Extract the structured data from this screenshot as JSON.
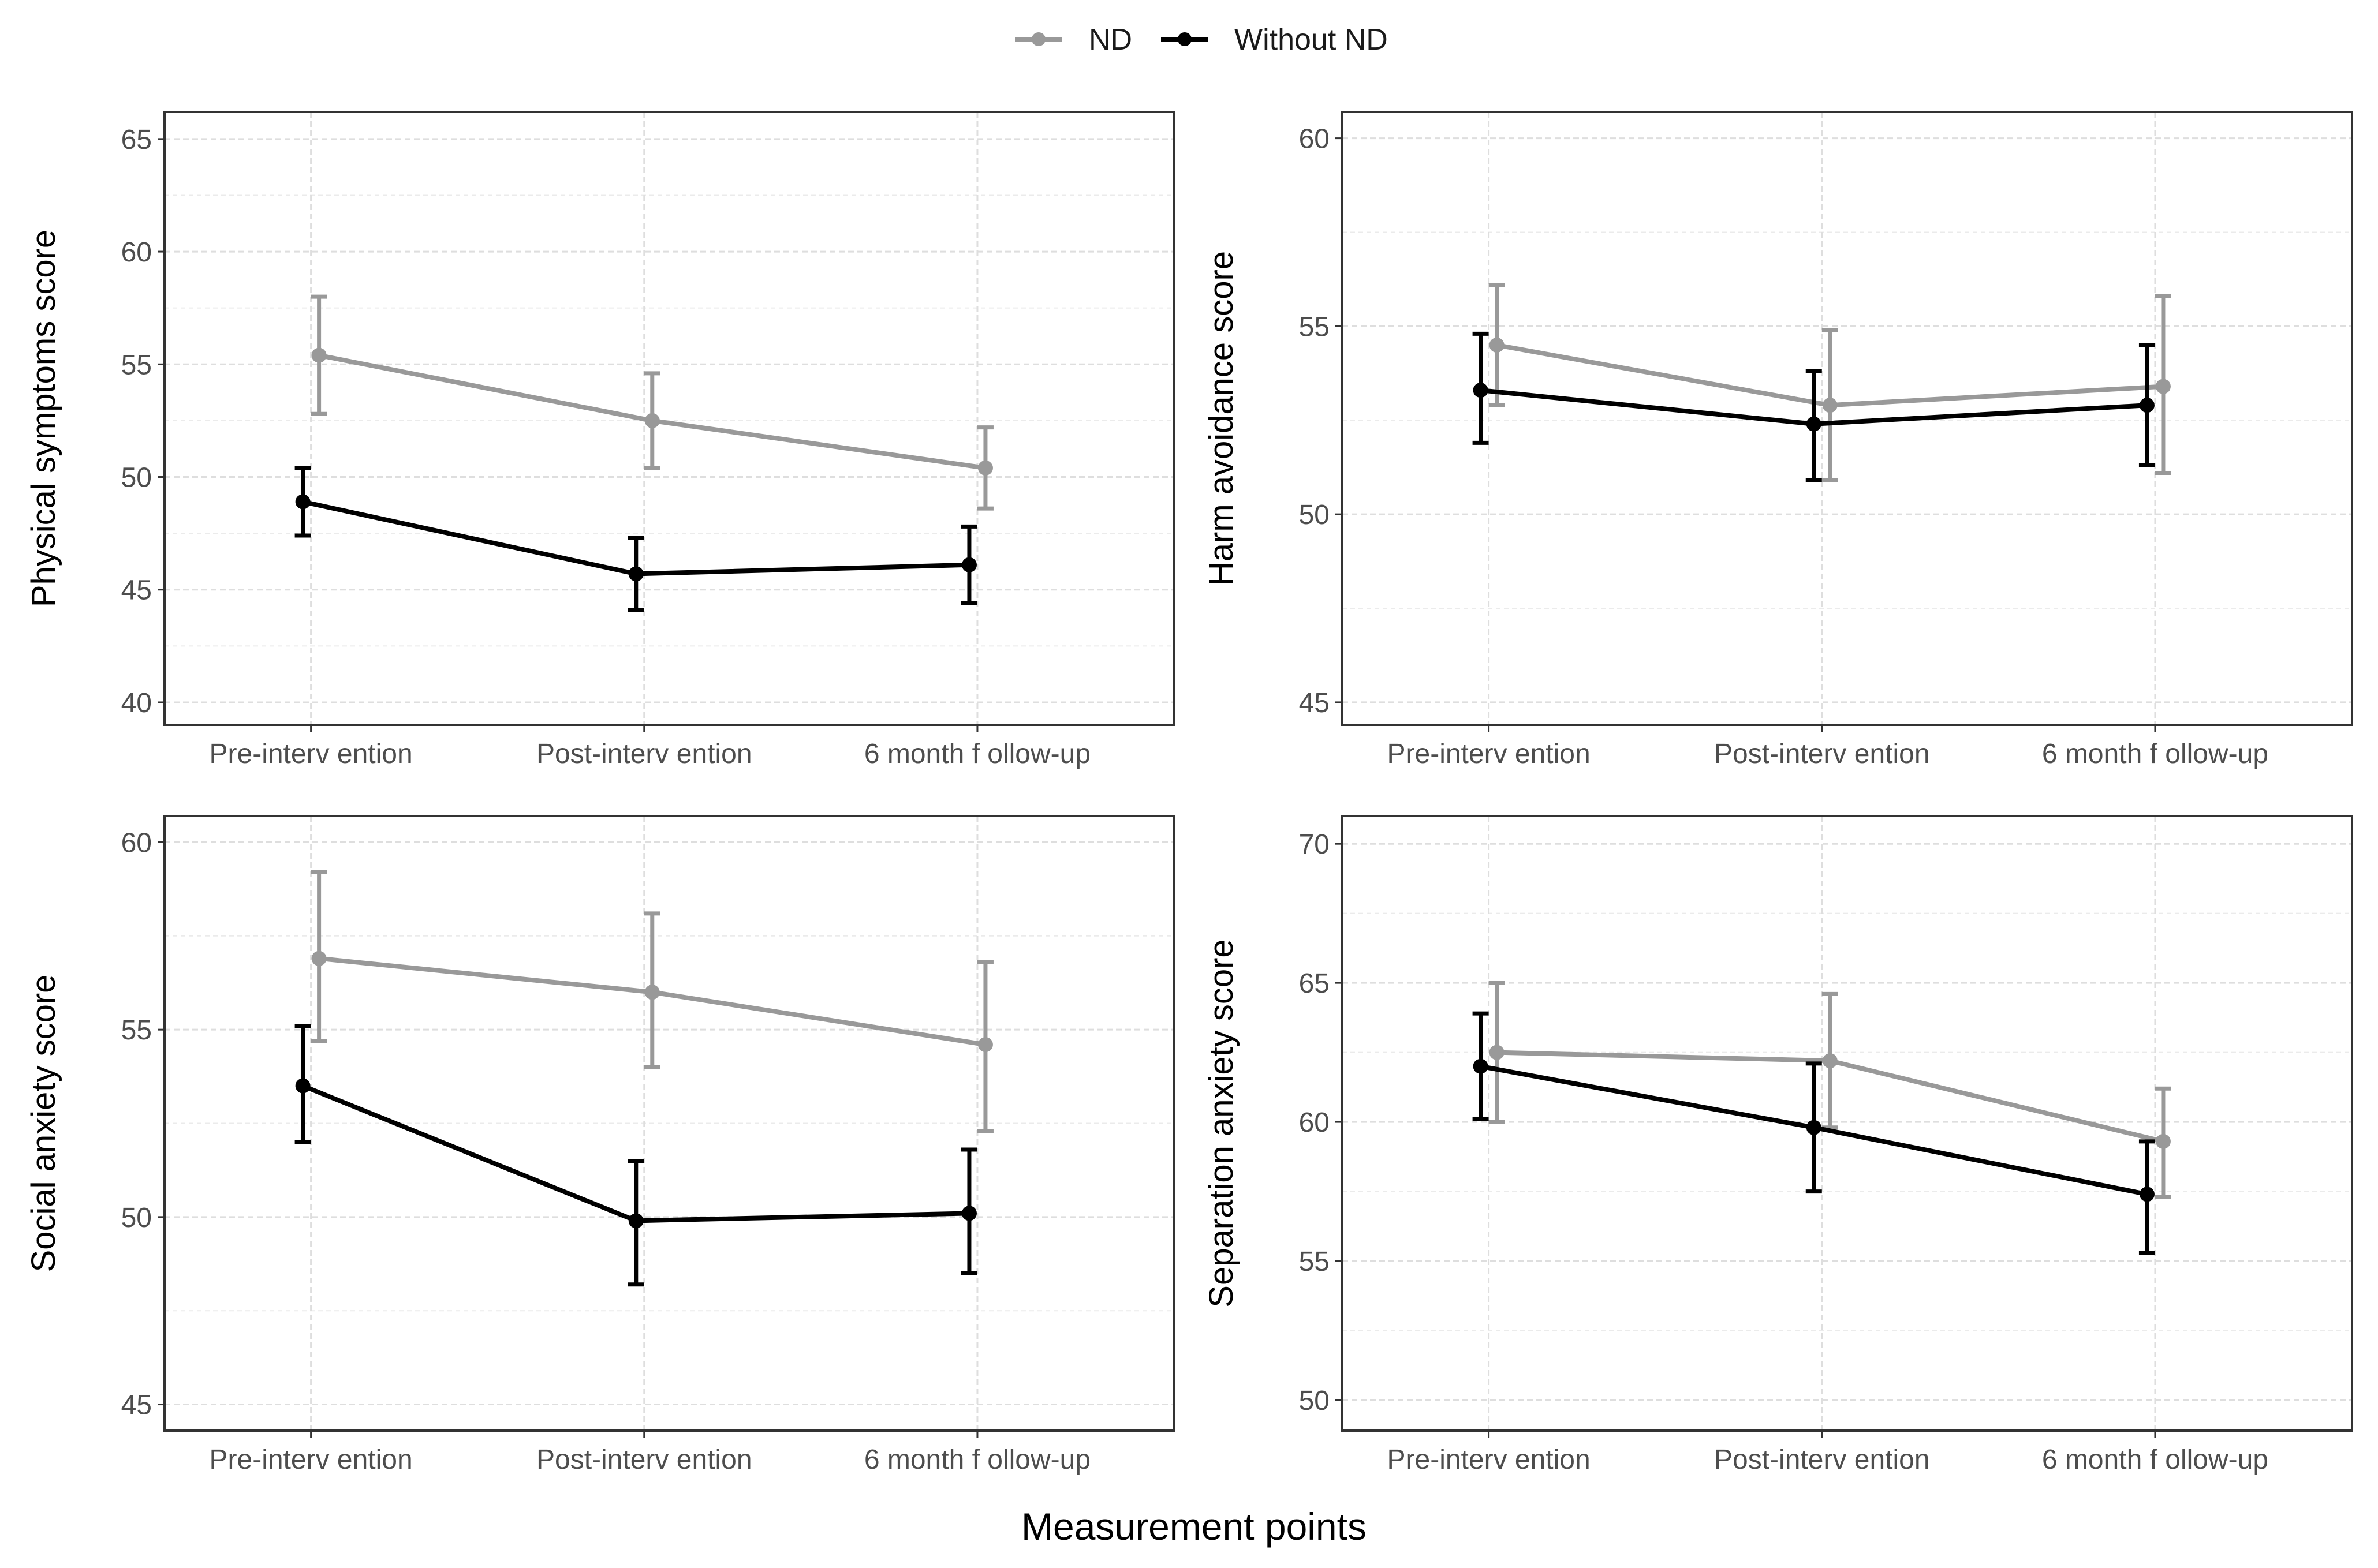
{
  "legend": {
    "items": [
      {
        "label": "ND",
        "color": "#999999"
      },
      {
        "label": "Without ND",
        "color": "#000000"
      }
    ]
  },
  "x_axis_title": "Measurement points",
  "chart_data": [
    {
      "type": "line",
      "panel": "top-left",
      "title": "",
      "xlabel": "",
      "ylabel": "Physical symptoms score",
      "categories": [
        "Pre-interv ention",
        "Post-interv ention",
        "6 month f ollow-up"
      ],
      "ylim": [
        39,
        66.2
      ],
      "yticks": [
        40,
        45,
        50,
        55,
        60,
        65
      ],
      "grid": true,
      "series": [
        {
          "name": "ND",
          "color": "#999999",
          "values": [
            55.4,
            52.5,
            50.4
          ],
          "lower": [
            52.8,
            50.4,
            48.6
          ],
          "upper": [
            58.0,
            54.6,
            52.2
          ]
        },
        {
          "name": "Without ND",
          "color": "#000000",
          "values": [
            48.9,
            45.7,
            46.1
          ],
          "lower": [
            47.4,
            44.1,
            44.4
          ],
          "upper": [
            50.4,
            47.3,
            47.8
          ]
        }
      ]
    },
    {
      "type": "line",
      "panel": "top-right",
      "title": "",
      "xlabel": "",
      "ylabel": "Harm avoidance score",
      "categories": [
        "Pre-interv ention",
        "Post-interv ention",
        "6 month f ollow-up"
      ],
      "ylim": [
        44.4,
        60.7
      ],
      "yticks": [
        45,
        50,
        55,
        60
      ],
      "grid": true,
      "series": [
        {
          "name": "ND",
          "color": "#999999",
          "values": [
            54.5,
            52.9,
            53.4
          ],
          "lower": [
            52.9,
            50.9,
            51.1
          ],
          "upper": [
            56.1,
            54.9,
            55.8
          ]
        },
        {
          "name": "Without ND",
          "color": "#000000",
          "values": [
            53.3,
            52.4,
            52.9
          ],
          "lower": [
            51.9,
            50.9,
            51.3
          ],
          "upper": [
            54.8,
            53.8,
            54.5
          ]
        }
      ]
    },
    {
      "type": "line",
      "panel": "bottom-left",
      "title": "",
      "xlabel": "",
      "ylabel": "Social anxiety score",
      "categories": [
        "Pre-interv ention",
        "Post-interv ention",
        "6 month f ollow-up"
      ],
      "ylim": [
        44.3,
        60.7
      ],
      "yticks": [
        45,
        50,
        55,
        60
      ],
      "grid": true,
      "series": [
        {
          "name": "ND",
          "color": "#999999",
          "values": [
            56.9,
            56.0,
            54.6
          ],
          "lower": [
            54.7,
            54.0,
            52.3
          ],
          "upper": [
            59.2,
            58.1,
            56.8
          ]
        },
        {
          "name": "Without ND",
          "color": "#000000",
          "values": [
            53.5,
            49.9,
            50.1
          ],
          "lower": [
            52.0,
            48.2,
            48.5
          ],
          "upper": [
            55.1,
            51.5,
            51.8
          ]
        }
      ]
    },
    {
      "type": "line",
      "panel": "bottom-right",
      "title": "",
      "xlabel": "",
      "ylabel": "Separation  anxiety score",
      "categories": [
        "Pre-interv ention",
        "Post-interv ention",
        "6 month f ollow-up"
      ],
      "ylim": [
        48.9,
        71
      ],
      "yticks": [
        50,
        55,
        60,
        65,
        70
      ],
      "grid": true,
      "series": [
        {
          "name": "ND",
          "color": "#999999",
          "values": [
            62.5,
            62.2,
            59.3
          ],
          "lower": [
            60.0,
            59.8,
            57.3
          ],
          "upper": [
            65.0,
            64.6,
            61.2
          ]
        },
        {
          "name": "Without ND",
          "color": "#000000",
          "values": [
            62.0,
            59.8,
            57.4
          ],
          "lower": [
            60.1,
            57.5,
            55.3
          ],
          "upper": [
            63.9,
            62.1,
            59.3
          ]
        }
      ]
    }
  ]
}
